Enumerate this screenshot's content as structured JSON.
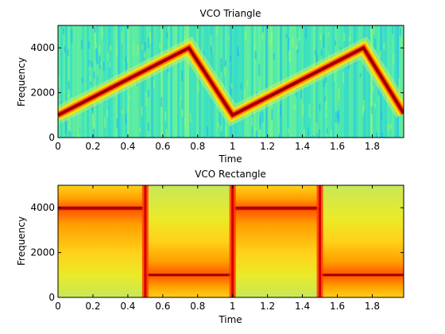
{
  "chart_data": [
    {
      "type": "heatmap",
      "subtype": "spectrogram",
      "title": "VCO Triangle",
      "xlabel": "Time",
      "ylabel": "Frequency",
      "xlim": [
        0,
        1.98
      ],
      "ylim": [
        0,
        5000
      ],
      "xticks": [
        "0",
        "0.2",
        "0.4",
        "0.6",
        "0.8",
        "1",
        "1.2",
        "1.4",
        "1.6",
        "1.8"
      ],
      "yticks": [
        "0",
        "2000",
        "4000"
      ],
      "colormap": "jet",
      "series": [
        {
          "x": [
            0,
            0.75,
            1.0,
            1.75,
            1.98
          ],
          "y": [
            1000,
            4000,
            1000,
            4000,
            1080
          ]
        }
      ]
    },
    {
      "type": "heatmap",
      "subtype": "spectrogram",
      "title": "VCO Rectangle",
      "xlabel": "Time",
      "ylabel": "Frequency",
      "xlim": [
        0,
        1.98
      ],
      "ylim": [
        0,
        5000
      ],
      "xticks": [
        "0",
        "0.2",
        "0.4",
        "0.6",
        "0.8",
        "1",
        "1.2",
        "1.4",
        "1.6",
        "1.8"
      ],
      "yticks": [
        "0",
        "2000",
        "4000"
      ],
      "colormap": "hot-yellow",
      "segments": [
        {
          "t0": 0.0,
          "t1": 0.5,
          "freq": 4000
        },
        {
          "t0": 0.5,
          "t1": 1.0,
          "freq": 1000
        },
        {
          "t0": 1.0,
          "t1": 1.5,
          "freq": 4000
        },
        {
          "t0": 1.5,
          "t1": 1.98,
          "freq": 1000
        }
      ],
      "transitions": [
        0.5,
        1.0,
        1.5
      ]
    }
  ]
}
